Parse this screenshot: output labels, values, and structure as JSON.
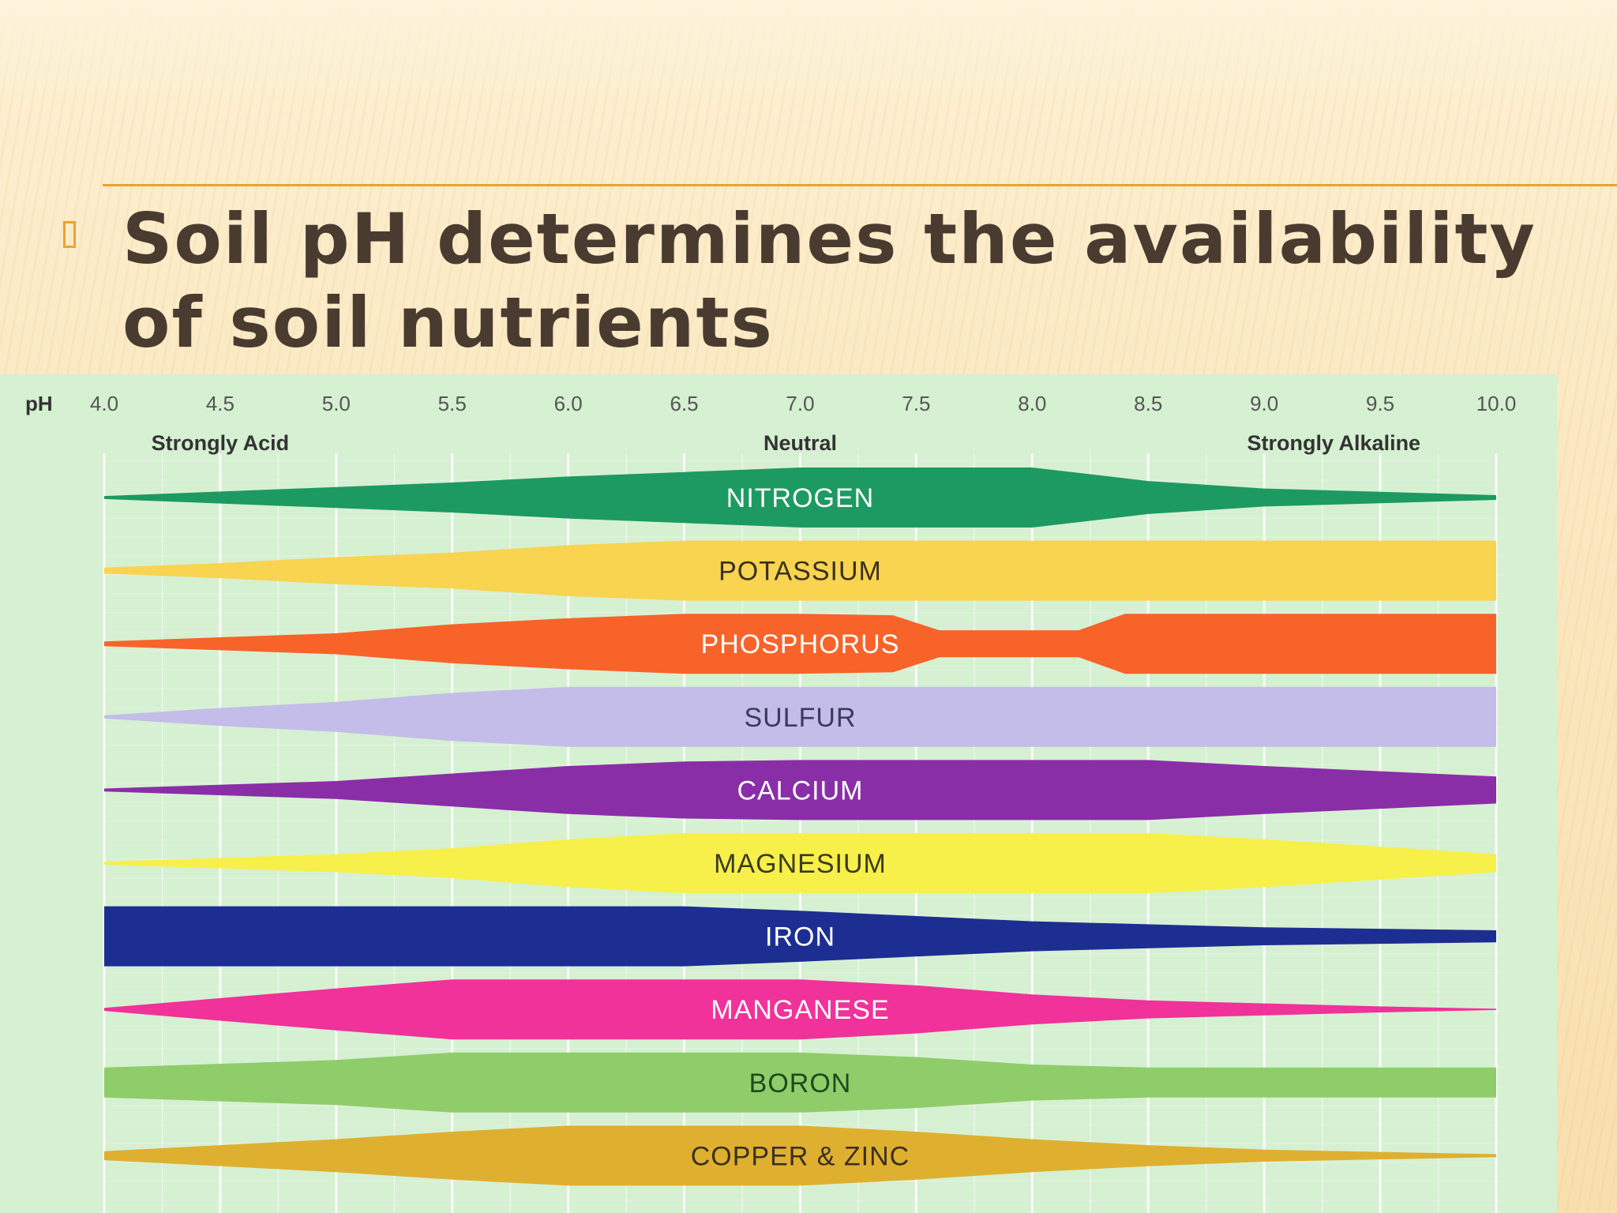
{
  "slide": {
    "title": "Soil pH determines the availability of soil nutrients",
    "bullet_icon": "square-bullet-icon",
    "accent_color": "#f0a030",
    "title_color": "#4a3b30"
  },
  "chart_data": {
    "type": "area",
    "title": "",
    "xlabel": "pH",
    "ylabel": "",
    "xlim": [
      4.0,
      10.0
    ],
    "x_ticks": [
      "4.0",
      "4.5",
      "5.0",
      "5.5",
      "6.0",
      "6.5",
      "7.0",
      "7.5",
      "8.0",
      "8.5",
      "9.0",
      "9.5",
      "10.0"
    ],
    "zones": [
      {
        "label": "Strongly Acid",
        "ph": 4.5
      },
      {
        "label": "Neutral",
        "ph": 7.0
      },
      {
        "label": "Strongly Alkaline",
        "ph": 9.3
      }
    ],
    "grid": true,
    "background_color": "#d6f0d2",
    "series": [
      {
        "name": "NITROGEN",
        "color": "#1d9a62",
        "text_color": "#ffffff",
        "profile": [
          [
            4.0,
            0.05
          ],
          [
            5.0,
            0.35
          ],
          [
            5.5,
            0.5
          ],
          [
            6.0,
            0.7
          ],
          [
            6.5,
            0.85
          ],
          [
            7.0,
            1.0
          ],
          [
            8.0,
            1.0
          ],
          [
            8.5,
            0.55
          ],
          [
            9.0,
            0.3
          ],
          [
            10.0,
            0.08
          ]
        ]
      },
      {
        "name": "POTASSIUM",
        "color": "#f8d450",
        "text_color": "#3a3020",
        "profile": [
          [
            4.0,
            0.1
          ],
          [
            4.5,
            0.25
          ],
          [
            5.0,
            0.45
          ],
          [
            5.5,
            0.6
          ],
          [
            6.0,
            0.85
          ],
          [
            6.5,
            1.0
          ],
          [
            10.0,
            1.0
          ]
        ]
      },
      {
        "name": "PHOSPHORUS",
        "color": "#f8632a",
        "text_color": "#ffffff",
        "profile": [
          [
            4.0,
            0.08
          ],
          [
            5.0,
            0.35
          ],
          [
            5.5,
            0.65
          ],
          [
            6.0,
            0.85
          ],
          [
            6.5,
            1.0
          ],
          [
            7.0,
            1.0
          ],
          [
            7.4,
            0.95
          ],
          [
            7.6,
            0.45
          ],
          [
            8.2,
            0.45
          ],
          [
            8.4,
            1.0
          ],
          [
            10.0,
            1.0
          ]
        ]
      },
      {
        "name": "SULFUR",
        "color": "#c4bde9",
        "text_color": "#3a3a60",
        "profile": [
          [
            4.0,
            0.05
          ],
          [
            4.5,
            0.3
          ],
          [
            5.0,
            0.5
          ],
          [
            5.5,
            0.8
          ],
          [
            6.0,
            1.0
          ],
          [
            10.0,
            1.0
          ]
        ]
      },
      {
        "name": "CALCIUM",
        "color": "#8a2ea8",
        "text_color": "#ffffff",
        "profile": [
          [
            4.0,
            0.05
          ],
          [
            5.0,
            0.3
          ],
          [
            5.5,
            0.55
          ],
          [
            6.0,
            0.8
          ],
          [
            6.5,
            0.95
          ],
          [
            7.0,
            1.0
          ],
          [
            8.5,
            1.0
          ],
          [
            9.0,
            0.8
          ],
          [
            10.0,
            0.45
          ]
        ]
      },
      {
        "name": "MAGNESIUM",
        "color": "#f7f04a",
        "text_color": "#3a3a20",
        "profile": [
          [
            4.0,
            0.05
          ],
          [
            5.0,
            0.3
          ],
          [
            5.5,
            0.5
          ],
          [
            6.0,
            0.8
          ],
          [
            6.5,
            1.0
          ],
          [
            8.5,
            1.0
          ],
          [
            9.0,
            0.8
          ],
          [
            10.0,
            0.3
          ]
        ]
      },
      {
        "name": "IRON",
        "color": "#1d2e92",
        "text_color": "#ffffff",
        "profile": [
          [
            4.0,
            1.0
          ],
          [
            6.5,
            1.0
          ],
          [
            7.0,
            0.85
          ],
          [
            8.0,
            0.5
          ],
          [
            9.0,
            0.3
          ],
          [
            10.0,
            0.2
          ]
        ]
      },
      {
        "name": "MANGANESE",
        "color": "#f0329a",
        "text_color": "#ffffff",
        "profile": [
          [
            4.0,
            0.05
          ],
          [
            5.0,
            0.7
          ],
          [
            5.5,
            1.0
          ],
          [
            7.0,
            1.0
          ],
          [
            7.5,
            0.8
          ],
          [
            8.0,
            0.5
          ],
          [
            8.5,
            0.3
          ],
          [
            9.5,
            0.1
          ],
          [
            10.0,
            0.02
          ]
        ]
      },
      {
        "name": "BORON",
        "color": "#8fcd6a",
        "text_color": "#1e4a1e",
        "profile": [
          [
            4.0,
            0.5
          ],
          [
            5.0,
            0.75
          ],
          [
            5.5,
            1.0
          ],
          [
            7.0,
            1.0
          ],
          [
            7.5,
            0.85
          ],
          [
            8.0,
            0.6
          ],
          [
            8.5,
            0.5
          ],
          [
            10.0,
            0.5
          ]
        ]
      },
      {
        "name": "COPPER & ZINC",
        "color": "#dfb030",
        "text_color": "#3a3020",
        "profile": [
          [
            4.0,
            0.15
          ],
          [
            5.0,
            0.55
          ],
          [
            5.5,
            0.8
          ],
          [
            6.0,
            1.0
          ],
          [
            7.0,
            1.0
          ],
          [
            7.5,
            0.8
          ],
          [
            8.0,
            0.55
          ],
          [
            8.5,
            0.35
          ],
          [
            9.0,
            0.2
          ],
          [
            10.0,
            0.05
          ]
        ]
      }
    ]
  }
}
